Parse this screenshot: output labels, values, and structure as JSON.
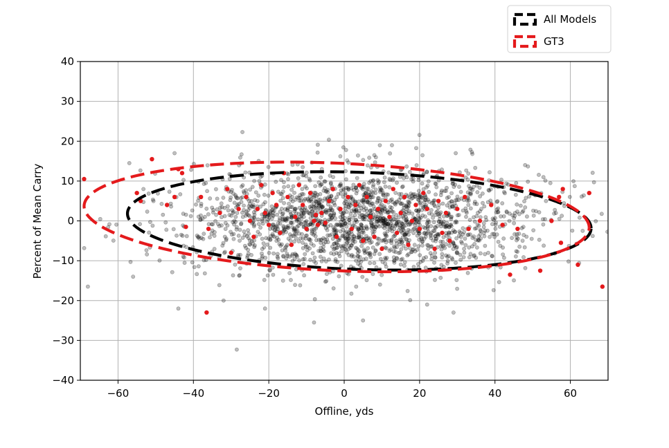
{
  "chart_data": {
    "type": "scatter",
    "title": "",
    "xlabel": "Offline, yds",
    "ylabel": "Percent of Mean Carry",
    "xlim": [
      -70,
      70
    ],
    "ylim": [
      -40,
      40
    ],
    "xticks": [
      -60,
      -40,
      -20,
      0,
      20,
      40,
      60
    ],
    "yticks": [
      -40,
      -30,
      -20,
      -10,
      0,
      10,
      20,
      30,
      40
    ],
    "xtick_labels": [
      "−60",
      "−40",
      "−20",
      "0",
      "20",
      "40",
      "60"
    ],
    "ytick_labels": [
      "−40",
      "−30",
      "−20",
      "−10",
      "0",
      "10",
      "20",
      "30",
      "40"
    ],
    "grid": true,
    "legend_position": "top-right, above plot",
    "series": [
      {
        "name": "All Models",
        "kind": "scatter",
        "color": "#000000",
        "alpha": 0.25,
        "approx_count": 2000,
        "x_distribution": {
          "mean": 4,
          "sd": 24,
          "range": [
            -70,
            70
          ]
        },
        "y_distribution": {
          "mean": 0,
          "sd": 6.5,
          "range": [
            -33,
            23
          ]
        },
        "notable_points": [
          [
            -27,
            22.3
          ],
          [
            -28.5,
            -32.3
          ],
          [
            -32,
            -20
          ],
          [
            -44,
            -22
          ],
          [
            22,
            -21
          ],
          [
            -21,
            -22
          ],
          [
            29,
            -23
          ],
          [
            -8,
            -25.5
          ],
          [
            5,
            -25
          ],
          [
            -68,
            -16.5
          ],
          [
            -56,
            -14
          ],
          [
            -57,
            14.5
          ],
          [
            -45,
            17
          ],
          [
            0.5,
            17.8
          ],
          [
            8,
            16.5
          ],
          [
            34,
            16.8
          ],
          [
            48,
            14
          ]
        ]
      },
      {
        "name": "GT3",
        "kind": "scatter",
        "color": "#e41a1c",
        "alpha": 1.0,
        "points": [
          [
            -51,
            15.5
          ],
          [
            -44,
            13
          ],
          [
            -43,
            12
          ],
          [
            -55,
            7
          ],
          [
            -54,
            5
          ],
          [
            -47,
            4
          ],
          [
            -45,
            6
          ],
          [
            -42,
            -1.5
          ],
          [
            -38,
            6
          ],
          [
            -36,
            -2
          ],
          [
            -36.5,
            -23
          ],
          [
            -33,
            2
          ],
          [
            -31,
            8
          ],
          [
            -30,
            -8
          ],
          [
            -28,
            3
          ],
          [
            -26,
            6
          ],
          [
            -25,
            0
          ],
          [
            -24,
            -4
          ],
          [
            -23,
            3
          ],
          [
            -22,
            9
          ],
          [
            -21,
            2
          ],
          [
            -20,
            -1
          ],
          [
            -19,
            7
          ],
          [
            -18,
            4
          ],
          [
            -17,
            -3
          ],
          [
            -16,
            12
          ],
          [
            -15,
            6
          ],
          [
            -14,
            -6
          ],
          [
            -13,
            1
          ],
          [
            -12,
            9
          ],
          [
            -11,
            4
          ],
          [
            -10,
            -2
          ],
          [
            -9,
            7
          ],
          [
            -8,
            0
          ],
          [
            -7.5,
            1.5
          ],
          [
            -7,
            -1
          ],
          [
            -6,
            2
          ],
          [
            -5,
            -0.5
          ],
          [
            -4,
            5
          ],
          [
            -3,
            8
          ],
          [
            -2,
            -4
          ],
          [
            -1,
            3
          ],
          [
            1,
            6
          ],
          [
            2,
            -2
          ],
          [
            3,
            4
          ],
          [
            4,
            9
          ],
          [
            5,
            -5
          ],
          [
            6,
            6
          ],
          [
            7,
            1
          ],
          [
            8,
            -4
          ],
          [
            9,
            3
          ],
          [
            10,
            -7
          ],
          [
            11,
            5
          ],
          [
            12,
            1
          ],
          [
            13,
            8
          ],
          [
            14,
            -3
          ],
          [
            15,
            2
          ],
          [
            16,
            6
          ],
          [
            17,
            -6
          ],
          [
            18,
            0
          ],
          [
            19,
            4
          ],
          [
            20,
            -2
          ],
          [
            21,
            7
          ],
          [
            22,
            3
          ],
          [
            24,
            -7
          ],
          [
            25,
            5
          ],
          [
            26,
            -3
          ],
          [
            27,
            2
          ],
          [
            28,
            -5
          ],
          [
            30,
            3
          ],
          [
            32,
            6
          ],
          [
            33,
            -2
          ],
          [
            36,
            0
          ],
          [
            39,
            4
          ],
          [
            42,
            -1
          ],
          [
            44,
            -13.5
          ],
          [
            46,
            -2
          ],
          [
            52,
            -12.5
          ],
          [
            55,
            0
          ],
          [
            57,
            6
          ],
          [
            57.5,
            -5.5
          ],
          [
            58,
            8
          ],
          [
            62,
            -11
          ],
          [
            65,
            7
          ],
          [
            68.5,
            -16.5
          ],
          [
            -69,
            10.5
          ]
        ]
      },
      {
        "name": "All Models",
        "kind": "ellipse",
        "legend": true,
        "color": "#000000",
        "center": [
          4,
          0
        ],
        "semi_axis_x": 61.5,
        "semi_axis_y": 12.2,
        "tilt_pct_per_yd": -0.03
      },
      {
        "name": "GT3",
        "kind": "ellipse",
        "legend": true,
        "color": "#e41a1c",
        "center": [
          -2,
          1
        ],
        "semi_axis_x": 67,
        "semi_axis_y": 13.5,
        "tilt_pct_per_yd": -0.04
      }
    ]
  }
}
